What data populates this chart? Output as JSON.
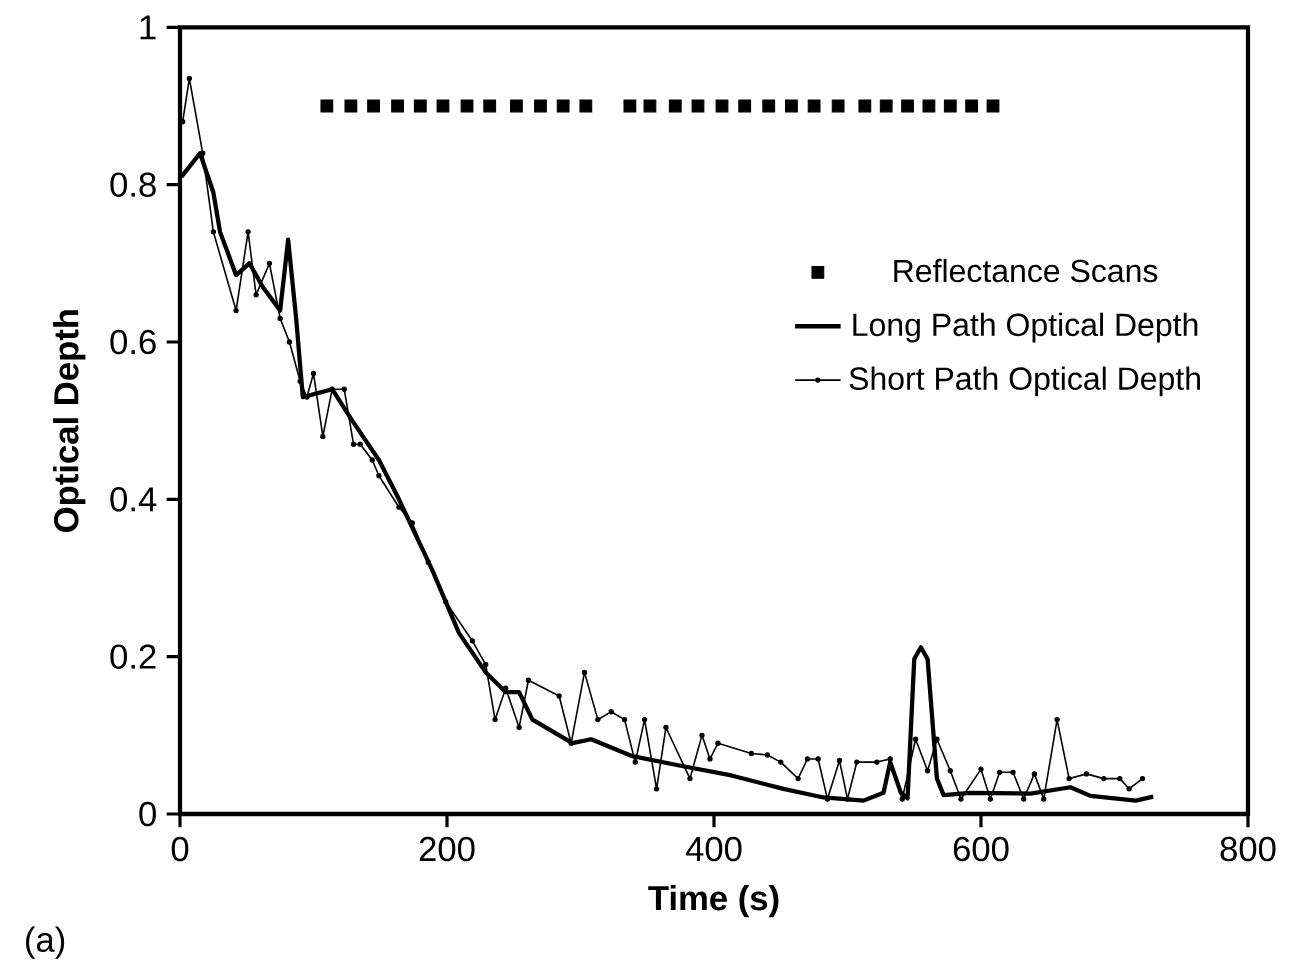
{
  "chart_data": {
    "type": "line",
    "xlabel": "Time (s)",
    "ylabel": "Optical Depth",
    "xlim": [
      0,
      800
    ],
    "ylim": [
      0,
      1
    ],
    "xticks": [
      0,
      200,
      400,
      600,
      800
    ],
    "yticks": [
      0,
      0.2,
      0.4,
      0.6,
      0.8,
      1
    ],
    "legend": "right",
    "grid": false,
    "annotations": [
      "(a)"
    ],
    "series": [
      {
        "name": "Reflectance Scans",
        "type": "scatter",
        "marker": "square",
        "color": "#000000",
        "x": [
          110,
          128,
          145,
          163,
          180,
          197,
          215,
          232,
          252,
          270,
          287,
          304,
          337,
          352,
          371,
          388,
          406,
          423,
          441,
          458,
          475,
          493,
          513,
          529,
          545,
          561,
          577,
          593,
          609
        ],
        "values": [
          0.9,
          0.9,
          0.9,
          0.9,
          0.9,
          0.9,
          0.9,
          0.9,
          0.9,
          0.9,
          0.9,
          0.9,
          0.9,
          0.9,
          0.9,
          0.9,
          0.9,
          0.9,
          0.9,
          0.9,
          0.9,
          0.9,
          0.9,
          0.9,
          0.9,
          0.9,
          0.9,
          0.9,
          0.9
        ]
      },
      {
        "name": "Long Path Optical Depth",
        "marker": "none",
        "color": "#000000",
        "x": [
          1,
          15,
          25,
          30,
          42,
          52,
          62,
          75,
          81,
          87,
          92,
          114,
          129,
          149,
          164,
          189,
          209,
          229,
          244,
          254,
          264,
          294,
          308,
          338,
          373,
          413,
          452,
          482,
          512,
          527,
          532,
          540,
          545,
          550,
          555,
          560,
          567,
          572,
          592,
          637,
          667,
          682,
          716,
          729
        ],
        "values": [
          0.81,
          0.84,
          0.79,
          0.74,
          0.685,
          0.7,
          0.67,
          0.64,
          0.73,
          0.63,
          0.53,
          0.54,
          0.5,
          0.45,
          0.4,
          0.31,
          0.23,
          0.18,
          0.155,
          0.155,
          0.12,
          0.09,
          0.095,
          0.074,
          0.062,
          0.049,
          0.032,
          0.021,
          0.017,
          0.027,
          0.066,
          0.027,
          0.02,
          0.197,
          0.212,
          0.197,
          0.045,
          0.024,
          0.027,
          0.026,
          0.034,
          0.023,
          0.017,
          0.022
        ]
      },
      {
        "name": "Short Path Optical Depth",
        "marker": "circle",
        "color": "#000000",
        "x": [
          2,
          7,
          17,
          25,
          42,
          51,
          57,
          67,
          75,
          82,
          90,
          95,
          100,
          107,
          114,
          123,
          130,
          135,
          144,
          149,
          164,
          174,
          186,
          199,
          219,
          229,
          236,
          244,
          254,
          261,
          284,
          293,
          303,
          313,
          323,
          333,
          341,
          348,
          357,
          364,
          382,
          391,
          397,
          403,
          428,
          440,
          450,
          463,
          470,
          478,
          485,
          494,
          500,
          507,
          522,
          532,
          541,
          551,
          560,
          567,
          577,
          585,
          600,
          607,
          614,
          624,
          632,
          640,
          647,
          657,
          666,
          679,
          692,
          704,
          711,
          721
        ],
        "values": [
          0.88,
          0.935,
          0.84,
          0.74,
          0.64,
          0.74,
          0.66,
          0.7,
          0.63,
          0.6,
          0.55,
          0.53,
          0.56,
          0.48,
          0.54,
          0.54,
          0.47,
          0.47,
          0.45,
          0.43,
          0.39,
          0.37,
          0.32,
          0.27,
          0.22,
          0.19,
          0.12,
          0.16,
          0.11,
          0.17,
          0.15,
          0.09,
          0.18,
          0.12,
          0.13,
          0.12,
          0.066,
          0.12,
          0.032,
          0.11,
          0.045,
          0.1,
          0.07,
          0.09,
          0.077,
          0.075,
          0.066,
          0.045,
          0.07,
          0.07,
          0.019,
          0.068,
          0.019,
          0.066,
          0.066,
          0.07,
          0.019,
          0.095,
          0.055,
          0.095,
          0.055,
          0.019,
          0.057,
          0.019,
          0.053,
          0.053,
          0.019,
          0.051,
          0.019,
          0.12,
          0.045,
          0.051,
          0.045,
          0.045,
          0.032,
          0.045
        ]
      }
    ]
  }
}
